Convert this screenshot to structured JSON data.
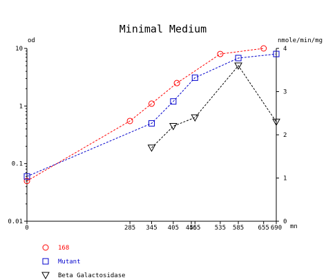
{
  "chart_data": {
    "type": "line",
    "title": "Minimal Medium",
    "xlabel": "mn",
    "ylabel_left": "od",
    "ylabel_right": "nmole/min/mg",
    "x_ticks": [
      0,
      285,
      345,
      405,
      455,
      465,
      535,
      585,
      655,
      690
    ],
    "x_tick_labels": [
      "0",
      "285",
      "345",
      "405",
      "455",
      "465",
      "535",
      "585",
      "655",
      "690"
    ],
    "xlim": [
      0,
      690
    ],
    "y_left_scale": "log",
    "y_left_ticks": [
      "0.01",
      "0.1",
      "1",
      "10"
    ],
    "y_left_lim": [
      0.01,
      10
    ],
    "y_right_ticks": [
      "0",
      "1",
      "2",
      "3",
      "4"
    ],
    "y_right_lim": [
      0,
      4
    ],
    "grid": false,
    "legend_position": "bottom-left",
    "series": [
      {
        "name": "168",
        "axis": "left",
        "color": "#ff0000",
        "marker": "circle",
        "line": "dashed",
        "x": [
          0,
          285,
          345,
          415,
          535,
          655
        ],
        "y": [
          0.05,
          0.55,
          1.1,
          2.5,
          8.0,
          10.0
        ]
      },
      {
        "name": "Mutant",
        "axis": "left",
        "color": "#0000cc",
        "marker": "square",
        "line": "dashed",
        "x": [
          0,
          345,
          405,
          465,
          585,
          690
        ],
        "y": [
          0.06,
          0.5,
          1.2,
          3.1,
          6.8,
          8.0
        ]
      },
      {
        "name": "Beta Galactosidase",
        "axis": "right",
        "color": "#000000",
        "marker": "triangle-down",
        "line": "dashed",
        "x": [
          345,
          405,
          465,
          585,
          690
        ],
        "y": [
          1.7,
          2.2,
          2.4,
          3.6,
          2.3
        ]
      }
    ]
  }
}
